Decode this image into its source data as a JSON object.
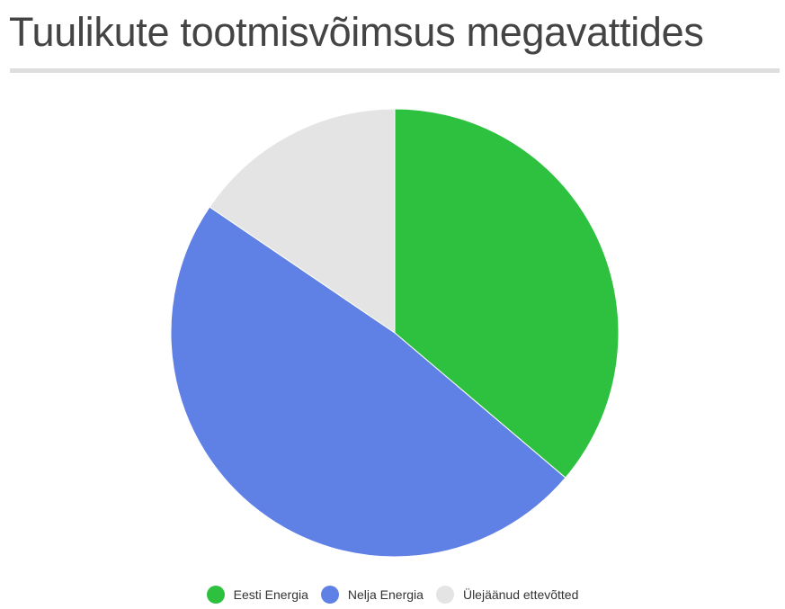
{
  "chart_data": {
    "type": "pie",
    "title": "Tuulikute tootmisvõimsus megavattides",
    "series": [
      {
        "name": "Eesti Energia",
        "value": 36.2,
        "color": "#2ec140"
      },
      {
        "name": "Nelja Energia",
        "value": 48.3,
        "color": "#5f81e6"
      },
      {
        "name": "Ülejäänud ettevõtted",
        "value": 15.5,
        "color": "#e4e4e4"
      }
    ],
    "legend_position": "bottom",
    "start_angle": "top, clockwise"
  }
}
